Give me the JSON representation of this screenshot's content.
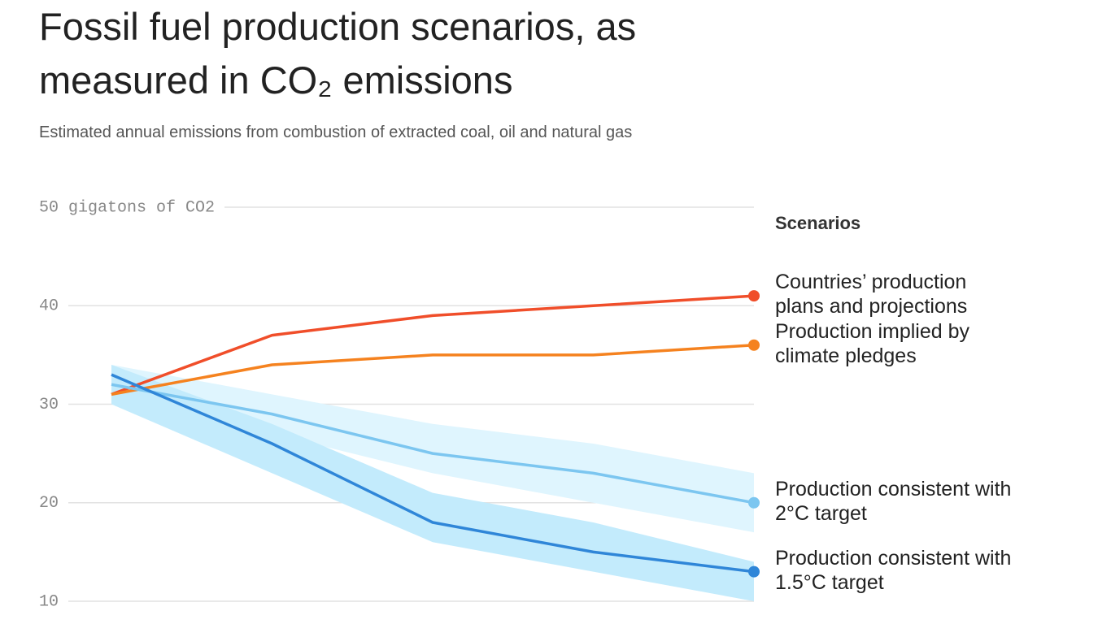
{
  "chart_data": {
    "type": "line",
    "title": "Fossil fuel production scenarios, as measured in CO₂ emissions",
    "subtitle": "Estimated annual emissions from combustion of extracted coal, oil and natural gas",
    "legend_title": "Scenarios",
    "categories": [
      null,
      null,
      null,
      null,
      null
    ],
    "ylim": [
      10,
      50
    ],
    "yticks": [
      10,
      20,
      30,
      40,
      {
        "value": 50,
        "label": "50 gigatons of CO2"
      }
    ],
    "grid": true,
    "series": [
      {
        "name": "Countries’ production plans and projections",
        "color": "#f04e2a",
        "values": [
          31,
          37,
          39,
          40,
          41
        ]
      },
      {
        "name": "Production implied by climate pledges",
        "color": "#f5821f",
        "values": [
          31,
          34,
          35,
          35,
          36
        ]
      },
      {
        "name": "Production consistent with 2°C target",
        "color": "#7cc6f0",
        "band_color": "#dff5fe",
        "values": [
          32,
          29,
          25,
          23,
          20
        ],
        "upper": [
          34,
          31,
          28,
          26,
          23
        ],
        "lower": [
          31,
          27,
          23,
          20,
          17
        ]
      },
      {
        "name": "Production consistent with 1.5°C target",
        "color": "#2f86d8",
        "band_color": "#c3ebfc",
        "values": [
          33,
          26,
          18,
          15,
          13
        ],
        "upper": [
          34,
          28,
          21,
          18,
          14
        ],
        "lower": [
          30,
          23,
          16,
          13,
          10
        ]
      }
    ]
  }
}
